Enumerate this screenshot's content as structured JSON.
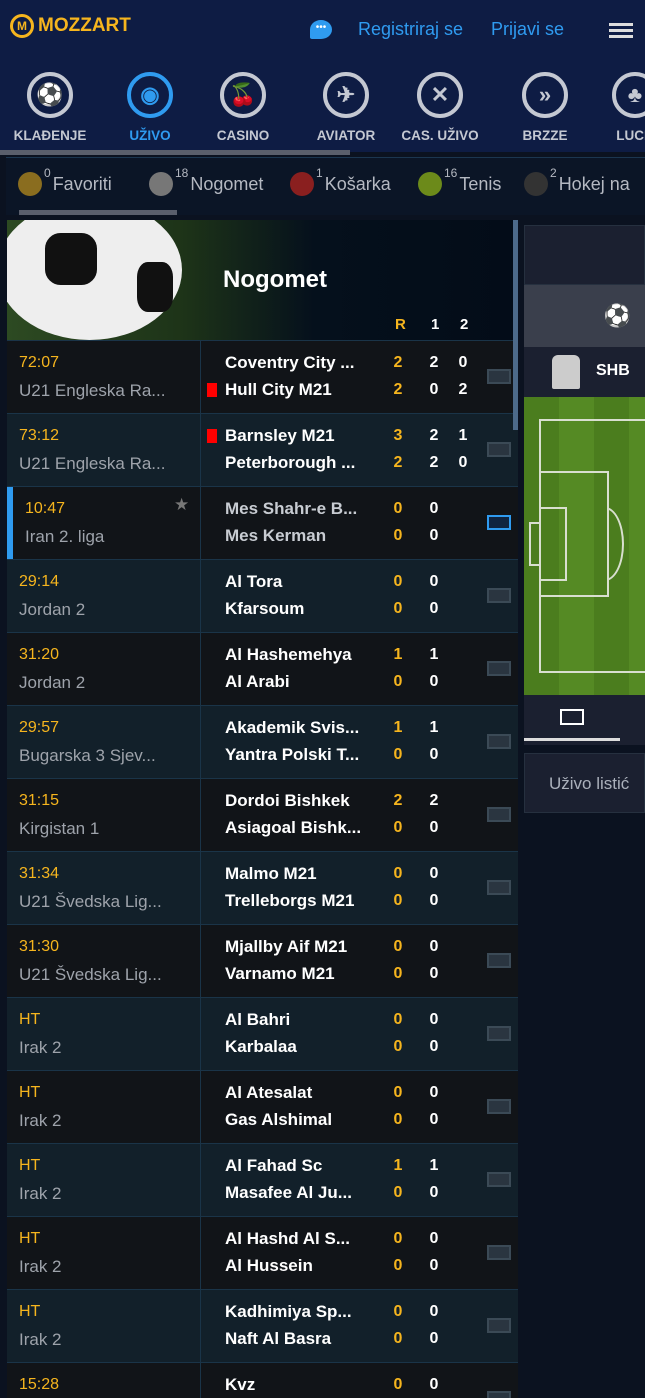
{
  "header": {
    "brand": "MOZZART",
    "register": "Registriraj se",
    "login": "Prijavi se"
  },
  "nav": [
    {
      "label": "KLAĐENJE",
      "icon": "soccer-ball-icon"
    },
    {
      "label": "UŽIVO",
      "icon": "live-antenna-icon",
      "active": true
    },
    {
      "label": "CASINO",
      "icon": "cherries-icon"
    },
    {
      "label": "AVIATOR",
      "icon": "airplane-icon"
    },
    {
      "label": "CAS. UŽIVO",
      "icon": "roulette-icon"
    },
    {
      "label": "BRZZE",
      "icon": "fast-forward-icon"
    },
    {
      "label": "LUCK",
      "icon": "clover-icon"
    }
  ],
  "sports": [
    {
      "label": "Favoriti",
      "count": "0",
      "color": "#8a6d1f"
    },
    {
      "label": "Nogomet",
      "count": "18",
      "color": "#777"
    },
    {
      "label": "Košarka",
      "count": "1",
      "color": "#8a1f1f"
    },
    {
      "label": "Tenis",
      "count": "16",
      "color": "#6c8a1a"
    },
    {
      "label": "Hokej na",
      "count": "2",
      "color": "#333"
    }
  ],
  "banner": {
    "title": "Nogomet",
    "col_r": "R",
    "col_1": "1",
    "col_2": "2"
  },
  "matches": [
    {
      "time": "72:07",
      "league": "U21 Engleska Ra...",
      "home": "Coventry City ...",
      "away": "Hull City M21",
      "r": [
        "2",
        "2"
      ],
      "s1": [
        "2",
        "0"
      ],
      "s2": [
        "0",
        "2"
      ],
      "card": "away"
    },
    {
      "time": "73:12",
      "league": "U21 Engleska Ra...",
      "home": "Barnsley M21",
      "away": "Peterborough ...",
      "r": [
        "3",
        "2"
      ],
      "s1": [
        "2",
        "2"
      ],
      "s2": [
        "1",
        "0"
      ],
      "card": "home"
    },
    {
      "time": "10:47",
      "league": "Iran 2. liga",
      "home": "Mes Shahr-e B...",
      "away": "Mes Kerman",
      "r": [
        "0",
        "0"
      ],
      "s1": [
        "0",
        "0"
      ],
      "selected": true
    },
    {
      "time": "29:14",
      "league": "Jordan 2",
      "home": "Al Tora",
      "away": "Kfarsoum",
      "r": [
        "0",
        "0"
      ],
      "s1": [
        "0",
        "0"
      ]
    },
    {
      "time": "31:20",
      "league": "Jordan 2",
      "home": "Al Hashemehya",
      "away": "Al Arabi",
      "r": [
        "1",
        "0"
      ],
      "s1": [
        "1",
        "0"
      ]
    },
    {
      "time": "29:57",
      "league": "Bugarska 3 Sjev...",
      "home": "Akademik Svis...",
      "away": "Yantra Polski T...",
      "r": [
        "1",
        "0"
      ],
      "s1": [
        "1",
        "0"
      ]
    },
    {
      "time": "31:15",
      "league": "Kirgistan 1",
      "home": "Dordoi Bishkek",
      "away": "Asiagoal Bishk...",
      "r": [
        "2",
        "0"
      ],
      "s1": [
        "2",
        "0"
      ]
    },
    {
      "time": "31:34",
      "league": "U21 Švedska Lig...",
      "home": "Malmo M21",
      "away": "Trelleborgs M21",
      "r": [
        "0",
        "0"
      ],
      "s1": [
        "0",
        "0"
      ]
    },
    {
      "time": "31:30",
      "league": "U21 Švedska Lig...",
      "home": "Mjallby Aif M21",
      "away": "Varnamo M21",
      "r": [
        "0",
        "0"
      ],
      "s1": [
        "0",
        "0"
      ]
    },
    {
      "time": "HT",
      "league": "Irak 2",
      "home": "Al Bahri",
      "away": "Karbalaa",
      "r": [
        "0",
        "0"
      ],
      "s1": [
        "0",
        "0"
      ]
    },
    {
      "time": "HT",
      "league": "Irak 2",
      "home": "Al Atesalat",
      "away": "Gas Alshimal",
      "r": [
        "0",
        "0"
      ],
      "s1": [
        "0",
        "0"
      ]
    },
    {
      "time": "HT",
      "league": "Irak 2",
      "home": "Al Fahad Sc",
      "away": "Masafee Al Ju...",
      "r": [
        "1",
        "0"
      ],
      "s1": [
        "1",
        "0"
      ]
    },
    {
      "time": "HT",
      "league": "Irak 2",
      "home": "Al Hashd Al S...",
      "away": "Al Hussein",
      "r": [
        "0",
        "0"
      ],
      "s1": [
        "0",
        "0"
      ]
    },
    {
      "time": "HT",
      "league": "Irak 2",
      "home": "Kadhimiya Sp...",
      "away": "Naft Al Basra",
      "r": [
        "0",
        "0"
      ],
      "s1": [
        "0",
        "0"
      ]
    },
    {
      "time": "15:28",
      "league": "",
      "home": "Kvz",
      "away": "",
      "r": [
        "0",
        ""
      ],
      "s1": [
        "0",
        ""
      ]
    }
  ],
  "right": {
    "team": "SHB",
    "slip": "Uživo listić"
  },
  "colors": {
    "accent": "#2f9bf0",
    "score": "#f6b51e",
    "brand": "#f6b51e"
  }
}
